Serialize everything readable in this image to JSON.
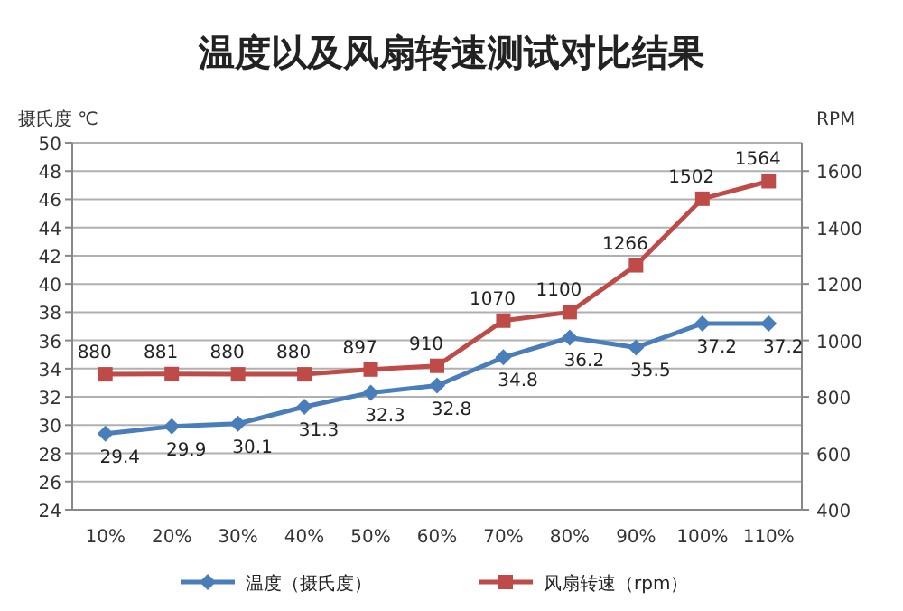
{
  "chart_data": {
    "type": "line",
    "title": "温度以及风扇转速测试对比结果",
    "ylabel": "摄氏度 ℃",
    "y2label": "RPM",
    "categories": [
      "10%",
      "20%",
      "30%",
      "40%",
      "50%",
      "60%",
      "70%",
      "80%",
      "90%",
      "100%",
      "110%"
    ],
    "series": [
      {
        "name": "温度（摄氏度）",
        "color": "#4a7ebb",
        "marker": "diamond",
        "values": [
          29.4,
          29.9,
          30.1,
          31.3,
          32.3,
          32.8,
          34.8,
          36.2,
          35.5,
          37.2,
          37.2
        ]
      },
      {
        "name": "风扇转速（rpm）",
        "color": "#be4b48",
        "marker": "square",
        "axis": "y2",
        "values": [
          880,
          881,
          880,
          880,
          897,
          910,
          1070,
          1100,
          1266,
          1502,
          1564
        ]
      }
    ],
    "ylim": [
      24,
      50
    ],
    "yticks": [
      24,
      26,
      28,
      30,
      32,
      34,
      36,
      38,
      40,
      42,
      44,
      46,
      48,
      50
    ],
    "y2lim": [
      400,
      1700
    ],
    "y2ticks": [
      400,
      600,
      800,
      1000,
      1200,
      1400,
      1600
    ],
    "grid": "y",
    "legend": "bottom",
    "data_labels": true
  }
}
